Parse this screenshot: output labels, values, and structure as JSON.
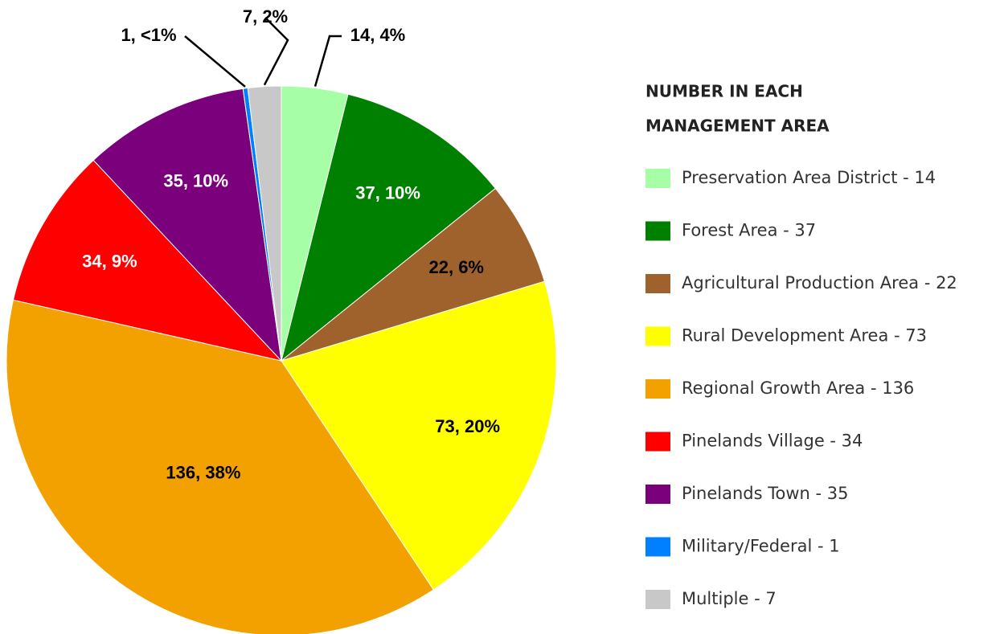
{
  "chart_data": {
    "type": "pie",
    "legend_title": [
      "NUMBER IN EACH",
      "MANAGEMENT AREA"
    ],
    "categories": [
      "Preservation Area District - 14",
      "Forest Area - 37",
      "Agricultural Production Area - 22",
      "Rural Development Area - 73",
      "Regional Growth Area - 136",
      "Pinelands Village - 34",
      "Pinelands Town - 35",
      "Military/Federal - 1",
      "Multiple - 7"
    ],
    "values": [
      14,
      37,
      22,
      73,
      136,
      34,
      35,
      1,
      7
    ],
    "value_labels": [
      "14, 4%",
      "37, 10%",
      "22, 6%",
      "73, 20%",
      "136, 38%",
      "34, 9%",
      "35, 10%",
      "1, <1%",
      "7, 2%"
    ],
    "colors": [
      "#a6ffa6",
      "#008000",
      "#a0622d",
      "#ffff00",
      "#f2a100",
      "#ff0000",
      "#7b007b",
      "#0080ff",
      "#c8c8c8"
    ],
    "legend": "right"
  }
}
